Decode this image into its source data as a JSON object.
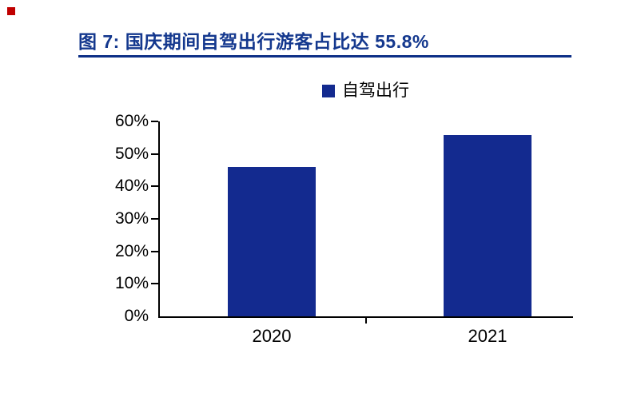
{
  "header": {
    "bullet_color": "#C00000",
    "title": "图 7:  国庆期间自驾出行游客占比达 55.8%",
    "title_color": "#14388E",
    "underline_color": "#0D2F87"
  },
  "chart_data": {
    "type": "bar",
    "title": "国庆期间自驾出行游客占比达 55.8%",
    "categories": [
      "2020",
      "2021"
    ],
    "series": [
      {
        "name": "自驾出行",
        "values": [
          46.0,
          55.8
        ]
      }
    ],
    "ylim": [
      0,
      60
    ],
    "y_tick_labels": [
      "0%",
      "10%",
      "20%",
      "30%",
      "40%",
      "50%",
      "60%"
    ],
    "xlabel": "",
    "ylabel": "",
    "grid": false,
    "legend_position": "top-center",
    "bar_color": "#132A8F",
    "axis_color": "#000000"
  }
}
